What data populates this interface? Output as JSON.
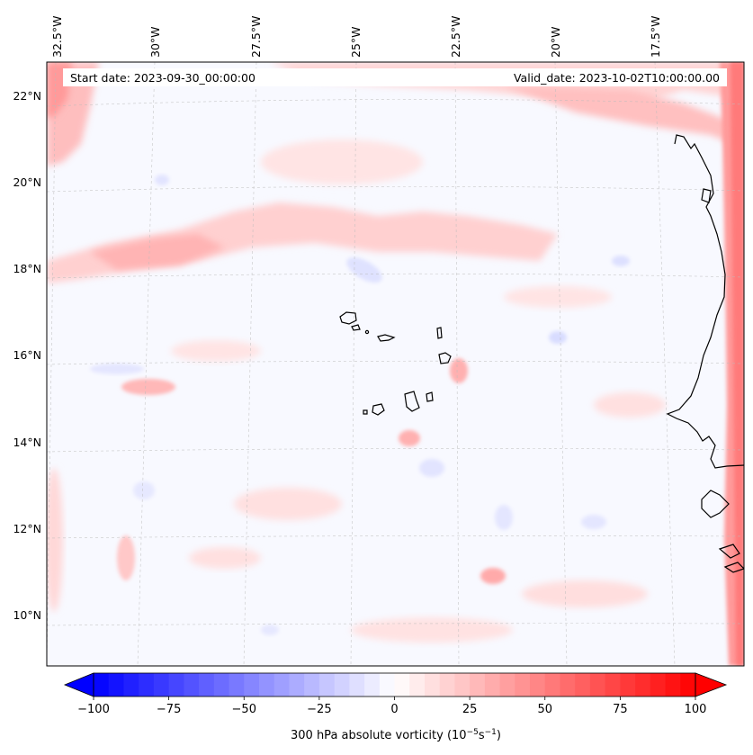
{
  "map": {
    "header": {
      "start_date": "Start date: 2023-09-30_00:00:00",
      "valid_date": "Valid_date: 2023-10-02T10:00:00.00"
    },
    "lon_labels": [
      "32.5°W",
      "30°W",
      "27.5°W",
      "25°W",
      "22.5°W",
      "20°W",
      "17.5°W"
    ],
    "lat_labels": [
      "22°N",
      "20°N",
      "18°N",
      "16°N",
      "14°N",
      "12°N",
      "10°N"
    ],
    "extent": {
      "lon_min": -33.0,
      "lon_max": -16.3,
      "lat_min": 8.9,
      "lat_max": 22.8
    },
    "features": [
      "Cape Verde Islands",
      "West African coastline"
    ]
  },
  "colorbar": {
    "min": -100,
    "max": 100,
    "ticks": [
      "−100",
      "−75",
      "−50",
      "−25",
      "0",
      "25",
      "50",
      "75",
      "100"
    ],
    "label_text": "300 hPa absolute vorticity (10",
    "label_exp1": "−5",
    "label_mid": "s",
    "label_exp2": "−1",
    "label_close": ")",
    "colors": {
      "min": "#0000ff",
      "mid": "#ffffff",
      "max": "#ff0000"
    }
  }
}
